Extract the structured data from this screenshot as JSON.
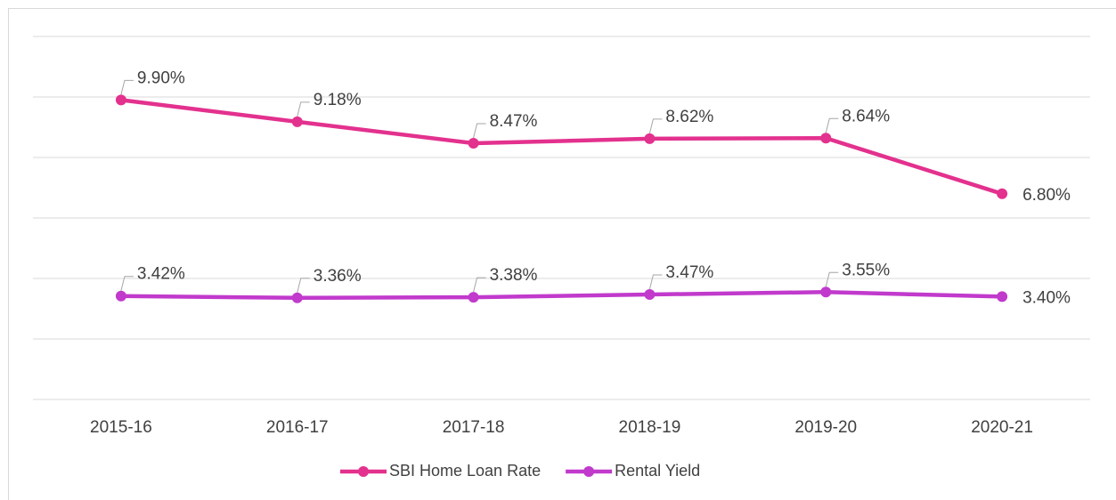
{
  "chart_data": {
    "type": "line",
    "categories": [
      "2015-16",
      "2016-17",
      "2017-18",
      "2018-19",
      "2019-20",
      "2020-21"
    ],
    "series": [
      {
        "name": "SBI Home Loan Rate",
        "color": "#e3318e",
        "values": [
          9.9,
          9.18,
          8.47,
          8.62,
          8.64,
          6.8
        ],
        "value_labels": [
          "9.90%",
          "9.18%",
          "8.47%",
          "8.62%",
          "8.64%",
          "6.80%"
        ]
      },
      {
        "name": "Rental Yield",
        "color": "#c13acc",
        "values": [
          3.42,
          3.36,
          3.38,
          3.47,
          3.55,
          3.4
        ],
        "value_labels": [
          "3.42%",
          "3.36%",
          "3.38%",
          "3.47%",
          "3.55%",
          "3.40%"
        ]
      }
    ],
    "ylim": [
      0,
      12
    ],
    "yticks": [
      0,
      2,
      4,
      6,
      8,
      10,
      12
    ],
    "grid": true,
    "legend": "bottom"
  }
}
